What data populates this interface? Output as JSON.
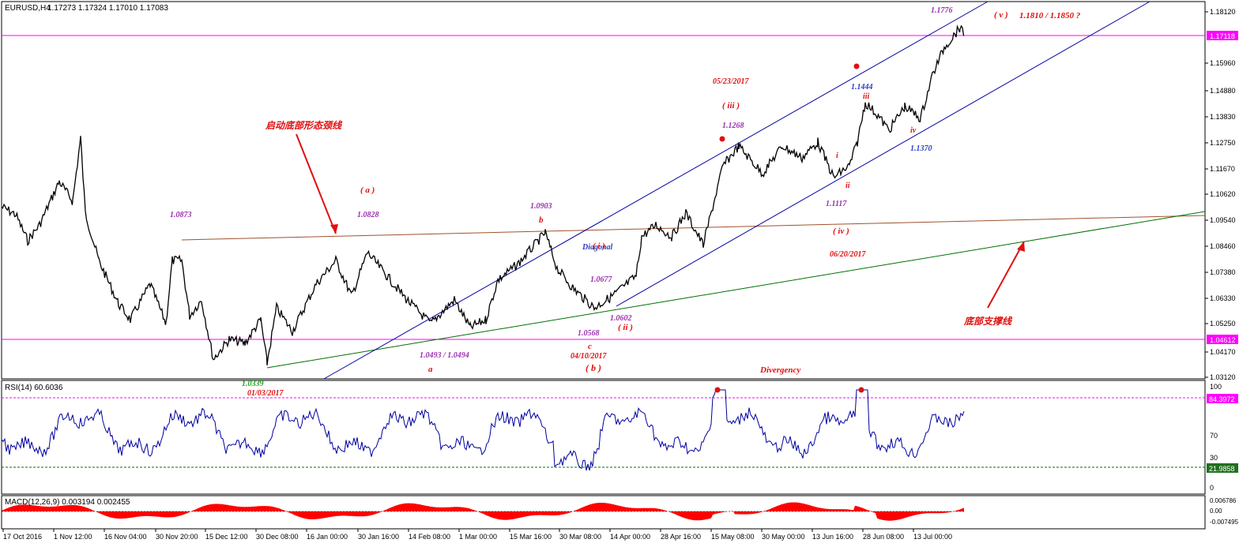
{
  "header": {
    "symbol": "EURUSD,H4",
    "ohlc": "1.17273 1.17324 1.17010 1.17083"
  },
  "colors": {
    "price": "#000000",
    "channel": "#0000a0",
    "neckline": "#a0522d",
    "support": "#007000",
    "level": "#ff00ff",
    "wave_purple": "#9b30b0",
    "wave_red": "#e01010",
    "wave_blue": "#3040c0",
    "rsi": "#0000a0",
    "macd_hist": "#ff0000",
    "badge_bg": "#ff00ff",
    "badge_green_bg": "#207020"
  },
  "price_panel": {
    "y_ticks": [
      "1.18120",
      "1.17118",
      "1.15960",
      "1.14880",
      "1.13830",
      "1.12750",
      "1.11670",
      "1.10620",
      "1.09540",
      "1.08460",
      "1.07380",
      "1.06330",
      "1.05250",
      "1.04612",
      "1.04170",
      "1.03120"
    ],
    "current_price_badge": "1.17118",
    "level_badge": "1.04612",
    "annotations": {
      "neckline_cn": "启动底部形态颈线",
      "support_cn": "底部支撑线",
      "wave_a_paren": "( a )",
      "p1_0873": "1.0873",
      "p1_0828": "1.0828",
      "p1_0903": "1.0903",
      "wave_b": "b",
      "diagonal": "Diagonal",
      "wave_i_paren": "( i )",
      "p1_0677": "1.0677",
      "p1_0602": "1.0602",
      "wave_ii_paren": "( ii )",
      "p1_0568": "1.0568",
      "wave_c": "c",
      "date_0410": "04/10/2017",
      "wave_b_paren": "( b )",
      "p1_0493": "1.0493 / 1.0494",
      "wave_a": "a",
      "p1_0339": "1.0339",
      "date_0103": "01/03/2017",
      "divergency": "Divergency",
      "date_0523": "05/23/2017",
      "wave_iii_paren": "( iii )",
      "p1_1268": "1.1268",
      "p1_1444": "1.1444",
      "wave_iii": "iii",
      "wave_iv": "iv",
      "p1_1370": "1.1370",
      "wave_i": "i",
      "wave_ii": "ii",
      "p1_1117": "1.1117",
      "wave_iv_paren": "( iv )",
      "date_0620": "06/20/2017",
      "p1_1776": "1.1776",
      "wave_v_paren": "( v )",
      "target": "1.1810 / 1.1850  ?"
    }
  },
  "rsi_panel": {
    "label": "RSI(14) 60.6036",
    "y_ticks": [
      "100",
      "70",
      "30",
      "0"
    ],
    "upper_badge": "84.3972",
    "lower_badge": "21.9858"
  },
  "macd_panel": {
    "label": "MACD(12,26,9) 0.003194 0.002455",
    "y_ticks": [
      "0.006786",
      "0.00",
      "-0.007495"
    ]
  },
  "x_axis": {
    "labels": [
      "17 Oct 2016",
      "1 Nov 12:00",
      "16 Nov 04:00",
      "30 Nov 20:00",
      "15 Dec 12:00",
      "30 Dec 08:00",
      "16 Jan 00:00",
      "30 Jan 16:00",
      "14 Feb 08:00",
      "1 Mar 00:00",
      "15 Mar 16:00",
      "30 Mar 08:00",
      "14 Apr 00:00",
      "28 Apr 16:00",
      "15 May 08:00",
      "30 May 00:00",
      "13 Jun 16:00",
      "28 Jun 08:00",
      "13 Jul 00:00"
    ]
  },
  "chart_data": {
    "type": "line",
    "title": "EURUSD,H4",
    "series": [
      {
        "name": "EURUSD",
        "x": [
          "17 Oct 2016",
          "1 Nov 12:00",
          "16 Nov 04:00",
          "30 Nov 20:00",
          "15 Dec 12:00",
          "30 Dec 08:00",
          "16 Jan 00:00",
          "30 Jan 16:00",
          "14 Feb 08:00",
          "1 Mar 00:00",
          "15 Mar 16:00",
          "30 Mar 08:00",
          "14 Apr 00:00",
          "28 Apr 16:00",
          "15 May 08:00",
          "30 May 00:00",
          "13 Jun 16:00",
          "28 Jun 08:00",
          "13 Jul 00:00"
        ],
        "y": [
          1.098,
          1.11,
          1.062,
          1.058,
          1.042,
          1.046,
          1.065,
          1.074,
          1.058,
          1.055,
          1.072,
          1.068,
          1.063,
          1.088,
          1.118,
          1.125,
          1.121,
          1.144,
          1.158
        ]
      }
    ],
    "ylim": [
      1.0312,
      1.1812
    ],
    "rsi_levels": [
      84.3972,
      21.9858
    ]
  }
}
